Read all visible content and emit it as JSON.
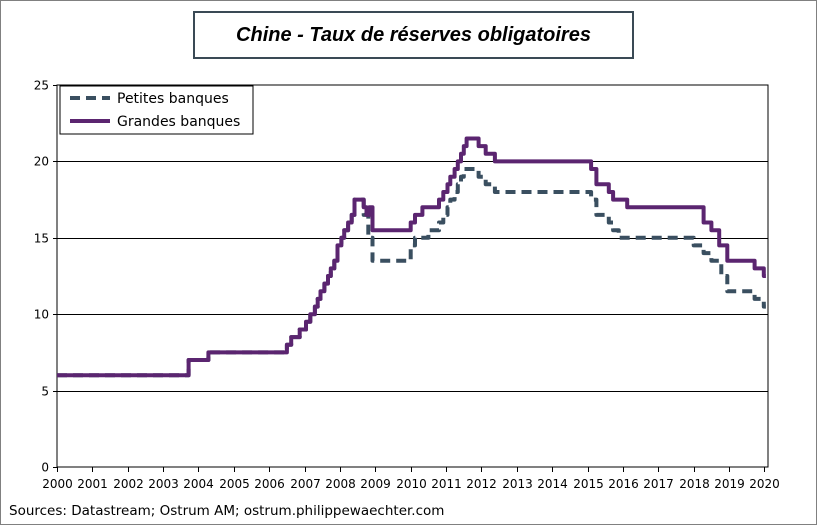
{
  "chart_data": {
    "type": "line",
    "title": "Chine - Taux de réserves obligatoires",
    "source": "Sources: Datastream; Ostrum AM; ostrum.philippewaechter.com",
    "xlabel": "",
    "ylabel": "",
    "xlim": [
      2000,
      2020.1
    ],
    "ylim": [
      0,
      25
    ],
    "x_ticks": [
      2000,
      2001,
      2002,
      2003,
      2004,
      2005,
      2006,
      2007,
      2008,
      2009,
      2010,
      2011,
      2012,
      2013,
      2014,
      2015,
      2016,
      2017,
      2018,
      2019,
      2020
    ],
    "y_ticks": [
      0,
      5,
      10,
      15,
      20,
      25
    ],
    "grid": "horizontal",
    "legend_position": "top-left",
    "colors": {
      "small": "#3a4f60",
      "large": "#5b2570",
      "grid": "#000000",
      "frame": "#808080"
    },
    "series": [
      {
        "name": "Petites banques",
        "style": "dashed",
        "points": [
          [
            2000.0,
            6.0
          ],
          [
            2003.72,
            6.0
          ],
          [
            2003.72,
            7.0
          ],
          [
            2004.28,
            7.0
          ],
          [
            2004.28,
            7.5
          ],
          [
            2006.5,
            7.5
          ],
          [
            2006.5,
            8.0
          ],
          [
            2006.62,
            8.0
          ],
          [
            2006.62,
            8.5
          ],
          [
            2006.86,
            8.5
          ],
          [
            2006.86,
            9.0
          ],
          [
            2007.04,
            9.0
          ],
          [
            2007.04,
            9.5
          ],
          [
            2007.16,
            9.5
          ],
          [
            2007.16,
            10.0
          ],
          [
            2007.29,
            10.0
          ],
          [
            2007.29,
            10.5
          ],
          [
            2007.37,
            10.5
          ],
          [
            2007.37,
            11.0
          ],
          [
            2007.45,
            11.0
          ],
          [
            2007.45,
            11.5
          ],
          [
            2007.56,
            11.5
          ],
          [
            2007.56,
            12.0
          ],
          [
            2007.66,
            12.0
          ],
          [
            2007.66,
            12.5
          ],
          [
            2007.74,
            12.5
          ],
          [
            2007.74,
            13.0
          ],
          [
            2007.84,
            13.0
          ],
          [
            2007.84,
            13.5
          ],
          [
            2007.93,
            13.5
          ],
          [
            2007.93,
            14.5
          ],
          [
            2008.04,
            14.5
          ],
          [
            2008.04,
            15.0
          ],
          [
            2008.12,
            15.0
          ],
          [
            2008.12,
            15.5
          ],
          [
            2008.23,
            15.5
          ],
          [
            2008.23,
            16.0
          ],
          [
            2008.33,
            16.0
          ],
          [
            2008.33,
            16.5
          ],
          [
            2008.41,
            16.5
          ],
          [
            2008.41,
            17.5
          ],
          [
            2008.67,
            17.5
          ],
          [
            2008.67,
            16.5
          ],
          [
            2008.8,
            16.5
          ],
          [
            2008.8,
            15.0
          ],
          [
            2008.92,
            15.0
          ],
          [
            2008.92,
            13.5
          ],
          [
            2010.0,
            13.5
          ],
          [
            2010.0,
            14.5
          ],
          [
            2010.12,
            14.5
          ],
          [
            2010.12,
            15.0
          ],
          [
            2010.5,
            15.0
          ],
          [
            2010.5,
            15.5
          ],
          [
            2010.8,
            15.5
          ],
          [
            2010.8,
            16.0
          ],
          [
            2010.92,
            16.0
          ],
          [
            2010.92,
            16.5
          ],
          [
            2011.04,
            16.5
          ],
          [
            2011.04,
            17.0
          ],
          [
            2011.12,
            17.0
          ],
          [
            2011.12,
            17.5
          ],
          [
            2011.24,
            17.5
          ],
          [
            2011.24,
            18.0
          ],
          [
            2011.33,
            18.0
          ],
          [
            2011.33,
            18.5
          ],
          [
            2011.42,
            18.5
          ],
          [
            2011.42,
            19.0
          ],
          [
            2011.5,
            19.0
          ],
          [
            2011.5,
            19.5
          ],
          [
            2011.92,
            19.5
          ],
          [
            2011.92,
            19.0
          ],
          [
            2012.12,
            19.0
          ],
          [
            2012.12,
            18.5
          ],
          [
            2012.38,
            18.5
          ],
          [
            2012.38,
            18.0
          ],
          [
            2015.1,
            18.0
          ],
          [
            2015.1,
            17.5
          ],
          [
            2015.25,
            17.5
          ],
          [
            2015.25,
            16.5
          ],
          [
            2015.6,
            16.5
          ],
          [
            2015.6,
            16.0
          ],
          [
            2015.72,
            16.0
          ],
          [
            2015.72,
            15.5
          ],
          [
            2015.88,
            15.5
          ],
          [
            2015.88,
            15.0
          ],
          [
            2018.0,
            15.0
          ],
          [
            2018.0,
            14.5
          ],
          [
            2018.28,
            14.5
          ],
          [
            2018.28,
            14.0
          ],
          [
            2018.5,
            14.0
          ],
          [
            2018.5,
            13.5
          ],
          [
            2018.78,
            13.5
          ],
          [
            2018.78,
            12.5
          ],
          [
            2018.95,
            12.5
          ],
          [
            2018.95,
            11.5
          ],
          [
            2019.72,
            11.5
          ],
          [
            2019.72,
            11.0
          ],
          [
            2019.98,
            11.0
          ],
          [
            2019.98,
            10.5
          ],
          [
            2020.04,
            10.5
          ]
        ]
      },
      {
        "name": "Grandes banques",
        "style": "solid",
        "points": [
          [
            2000.0,
            6.0
          ],
          [
            2003.72,
            6.0
          ],
          [
            2003.72,
            7.0
          ],
          [
            2004.28,
            7.0
          ],
          [
            2004.28,
            7.5
          ],
          [
            2006.5,
            7.5
          ],
          [
            2006.5,
            8.0
          ],
          [
            2006.62,
            8.0
          ],
          [
            2006.62,
            8.5
          ],
          [
            2006.86,
            8.5
          ],
          [
            2006.86,
            9.0
          ],
          [
            2007.04,
            9.0
          ],
          [
            2007.04,
            9.5
          ],
          [
            2007.16,
            9.5
          ],
          [
            2007.16,
            10.0
          ],
          [
            2007.29,
            10.0
          ],
          [
            2007.29,
            10.5
          ],
          [
            2007.37,
            10.5
          ],
          [
            2007.37,
            11.0
          ],
          [
            2007.45,
            11.0
          ],
          [
            2007.45,
            11.5
          ],
          [
            2007.56,
            11.5
          ],
          [
            2007.56,
            12.0
          ],
          [
            2007.66,
            12.0
          ],
          [
            2007.66,
            12.5
          ],
          [
            2007.74,
            12.5
          ],
          [
            2007.74,
            13.0
          ],
          [
            2007.84,
            13.0
          ],
          [
            2007.84,
            13.5
          ],
          [
            2007.93,
            13.5
          ],
          [
            2007.93,
            14.5
          ],
          [
            2008.04,
            14.5
          ],
          [
            2008.04,
            15.0
          ],
          [
            2008.12,
            15.0
          ],
          [
            2008.12,
            15.5
          ],
          [
            2008.23,
            15.5
          ],
          [
            2008.23,
            16.0
          ],
          [
            2008.33,
            16.0
          ],
          [
            2008.33,
            16.5
          ],
          [
            2008.41,
            16.5
          ],
          [
            2008.41,
            17.5
          ],
          [
            2008.67,
            17.5
          ],
          [
            2008.67,
            17.0
          ],
          [
            2008.75,
            17.0
          ],
          [
            2008.75,
            16.5
          ],
          [
            2008.83,
            16.5
          ],
          [
            2008.83,
            17.0
          ],
          [
            2008.92,
            17.0
          ],
          [
            2008.92,
            15.5
          ],
          [
            2010.0,
            15.5
          ],
          [
            2010.0,
            16.0
          ],
          [
            2010.12,
            16.0
          ],
          [
            2010.12,
            16.5
          ],
          [
            2010.33,
            16.5
          ],
          [
            2010.33,
            17.0
          ],
          [
            2010.8,
            17.0
          ],
          [
            2010.8,
            17.5
          ],
          [
            2010.92,
            17.5
          ],
          [
            2010.92,
            18.0
          ],
          [
            2011.04,
            18.0
          ],
          [
            2011.04,
            18.5
          ],
          [
            2011.12,
            18.5
          ],
          [
            2011.12,
            19.0
          ],
          [
            2011.24,
            19.0
          ],
          [
            2011.24,
            19.5
          ],
          [
            2011.33,
            19.5
          ],
          [
            2011.33,
            20.0
          ],
          [
            2011.42,
            20.0
          ],
          [
            2011.42,
            20.5
          ],
          [
            2011.5,
            20.5
          ],
          [
            2011.5,
            21.0
          ],
          [
            2011.58,
            21.0
          ],
          [
            2011.58,
            21.5
          ],
          [
            2011.92,
            21.5
          ],
          [
            2011.92,
            21.0
          ],
          [
            2012.12,
            21.0
          ],
          [
            2012.12,
            20.5
          ],
          [
            2012.38,
            20.5
          ],
          [
            2012.38,
            20.0
          ],
          [
            2015.1,
            20.0
          ],
          [
            2015.1,
            19.5
          ],
          [
            2015.25,
            19.5
          ],
          [
            2015.25,
            18.5
          ],
          [
            2015.6,
            18.5
          ],
          [
            2015.6,
            18.0
          ],
          [
            2015.72,
            18.0
          ],
          [
            2015.72,
            17.5
          ],
          [
            2016.12,
            17.5
          ],
          [
            2016.12,
            17.0
          ],
          [
            2018.28,
            17.0
          ],
          [
            2018.28,
            16.0
          ],
          [
            2018.5,
            16.0
          ],
          [
            2018.5,
            15.5
          ],
          [
            2018.72,
            15.5
          ],
          [
            2018.72,
            14.5
          ],
          [
            2018.95,
            14.5
          ],
          [
            2018.95,
            13.5
          ],
          [
            2019.72,
            13.5
          ],
          [
            2019.72,
            13.0
          ],
          [
            2019.98,
            13.0
          ],
          [
            2019.98,
            12.5
          ],
          [
            2020.04,
            12.5
          ]
        ]
      }
    ]
  }
}
